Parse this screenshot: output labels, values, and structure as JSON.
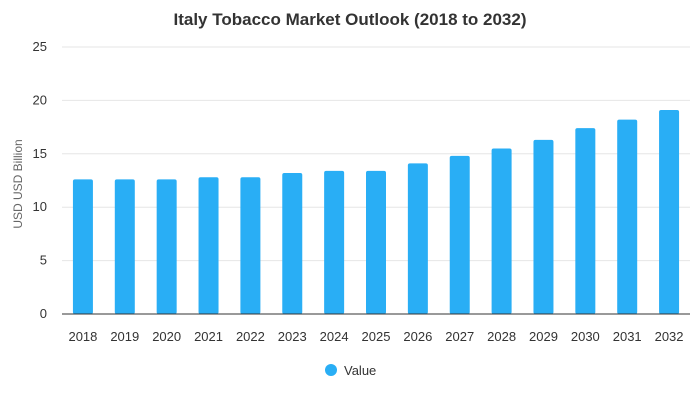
{
  "chart_data": {
    "type": "bar",
    "title": "Italy Tobacco Market Outlook (2018 to 2032)",
    "xlabel": "",
    "ylabel": "USD USD Billion",
    "categories": [
      "2018",
      "2019",
      "2020",
      "2021",
      "2022",
      "2023",
      "2024",
      "2025",
      "2026",
      "2027",
      "2028",
      "2029",
      "2030",
      "2031",
      "2032"
    ],
    "series": [
      {
        "name": "Value",
        "values": [
          12.6,
          12.6,
          12.6,
          12.8,
          12.8,
          13.2,
          13.4,
          13.4,
          14.1,
          14.8,
          15.5,
          16.3,
          17.4,
          18.2,
          19.1
        ]
      }
    ],
    "ylim": [
      0,
      25
    ],
    "yticks": [
      "0",
      "5",
      "10",
      "15",
      "20",
      "25"
    ],
    "grid": true,
    "legend_position": "bottom-center",
    "color": "#29aef5"
  }
}
